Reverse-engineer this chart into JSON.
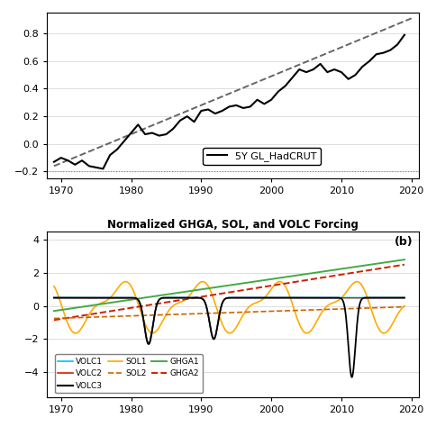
{
  "top_panel": {
    "xlim": [
      1968,
      2021
    ],
    "ylim": [
      -0.25,
      0.95
    ],
    "yticks": [
      -0.2,
      0.0,
      0.2,
      0.4,
      0.6,
      0.8
    ],
    "xticks": [
      1970,
      1980,
      1990,
      2000,
      2010,
      2020
    ],
    "legend_label": "5Y GL_HadCRUT",
    "hadcrut_x": [
      1969,
      1970,
      1971,
      1972,
      1973,
      1974,
      1975,
      1976,
      1977,
      1978,
      1979,
      1980,
      1981,
      1982,
      1983,
      1984,
      1985,
      1986,
      1987,
      1988,
      1989,
      1990,
      1991,
      1992,
      1993,
      1994,
      1995,
      1996,
      1997,
      1998,
      1999,
      2000,
      2001,
      2002,
      2003,
      2004,
      2005,
      2006,
      2007,
      2008,
      2009,
      2010,
      2011,
      2012,
      2013,
      2014,
      2015,
      2016,
      2017,
      2018,
      2019
    ],
    "hadcrut_y": [
      -0.13,
      -0.1,
      -0.12,
      -0.15,
      -0.12,
      -0.16,
      -0.17,
      -0.18,
      -0.08,
      -0.04,
      0.02,
      0.08,
      0.14,
      0.07,
      0.08,
      0.06,
      0.07,
      0.11,
      0.17,
      0.2,
      0.16,
      0.24,
      0.25,
      0.22,
      0.24,
      0.27,
      0.28,
      0.26,
      0.27,
      0.32,
      0.29,
      0.32,
      0.38,
      0.42,
      0.48,
      0.54,
      0.52,
      0.54,
      0.58,
      0.52,
      0.54,
      0.52,
      0.47,
      0.5,
      0.56,
      0.6,
      0.65,
      0.66,
      0.68,
      0.72,
      0.79
    ],
    "trend_x": [
      1969,
      2020
    ],
    "trend_y": [
      -0.16,
      0.91
    ],
    "dotted_y": -0.2
  },
  "bottom_panel": {
    "title": "Normalized GHGA, SOL, and VOLC Forcing",
    "label_b": "(b)",
    "xlim": [
      1968,
      2021
    ],
    "ylim": [
      -5.5,
      4.5
    ],
    "yticks": [
      -4,
      -2,
      0,
      2,
      4
    ],
    "xticks": [
      1970,
      1980,
      1990,
      2000,
      2010,
      2020
    ]
  },
  "colors": {
    "volc1": "#00bfff",
    "volc2": "#cc2200",
    "volc3": "#000000",
    "sol1": "#ffaa00",
    "sol2": "#cc6600",
    "ghga1": "#44aa44",
    "ghga2": "#cc2200",
    "hadcrut": "#000000",
    "trend": "#666666"
  }
}
